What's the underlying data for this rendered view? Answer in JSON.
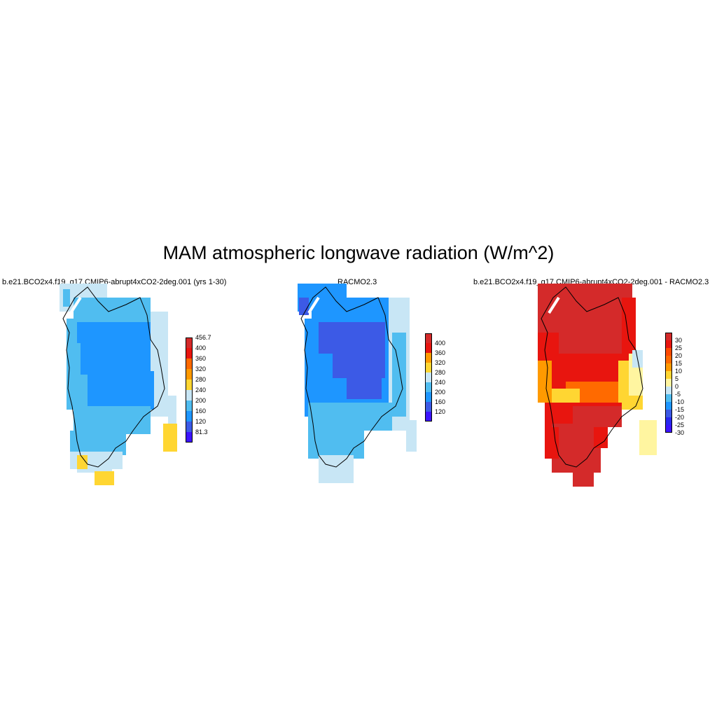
{
  "title": "MAM atmospheric longwave radiation (W/m^2)",
  "panels": [
    {
      "title": "b.e21.BCO2x4.f19_g17.CMIP6-abrupt4xCO2-2deg.001 (yrs 1-30)",
      "colorbar_labels": [
        "456.7",
        "400",
        "360",
        "320",
        "280",
        "240",
        "200",
        "160",
        "120",
        "81.3"
      ],
      "colorbar_colors": [
        "#d42a2a",
        "#e8150f",
        "#ff6a00",
        "#ff9a00",
        "#ffd632",
        "#c8e6f5",
        "#50bdf0",
        "#1e96ff",
        "#3c5ae6",
        "#3c14ff"
      ]
    },
    {
      "title": "RACMO2.3",
      "colorbar_labels": [
        "400",
        "360",
        "320",
        "280",
        "240",
        "200",
        "160",
        "120"
      ],
      "colorbar_colors": [
        "#d42a2a",
        "#e8150f",
        "#ff9a00",
        "#ffd632",
        "#c8e6f5",
        "#50bdf0",
        "#1e96ff",
        "#3c5ae6",
        "#3c14ff"
      ]
    },
    {
      "title": "b.e21.BCO2x4.f19_g17.CMIP6-abrupt4xCO2-2deg.001 - RACMO2.3",
      "colorbar_labels": [
        "30",
        "25",
        "20",
        "15",
        "10",
        "5",
        "0",
        "-5",
        "-10",
        "-15",
        "-20",
        "-25",
        "-30"
      ],
      "colorbar_colors": [
        "#d42a2a",
        "#e8150f",
        "#ff4a00",
        "#ff6a00",
        "#ff9a00",
        "#ffd632",
        "#fff5a0",
        "#c8e6f5",
        "#50bdf0",
        "#1e96ff",
        "#3c5ae6",
        "#2828f0",
        "#3c14ff"
      ]
    }
  ]
}
